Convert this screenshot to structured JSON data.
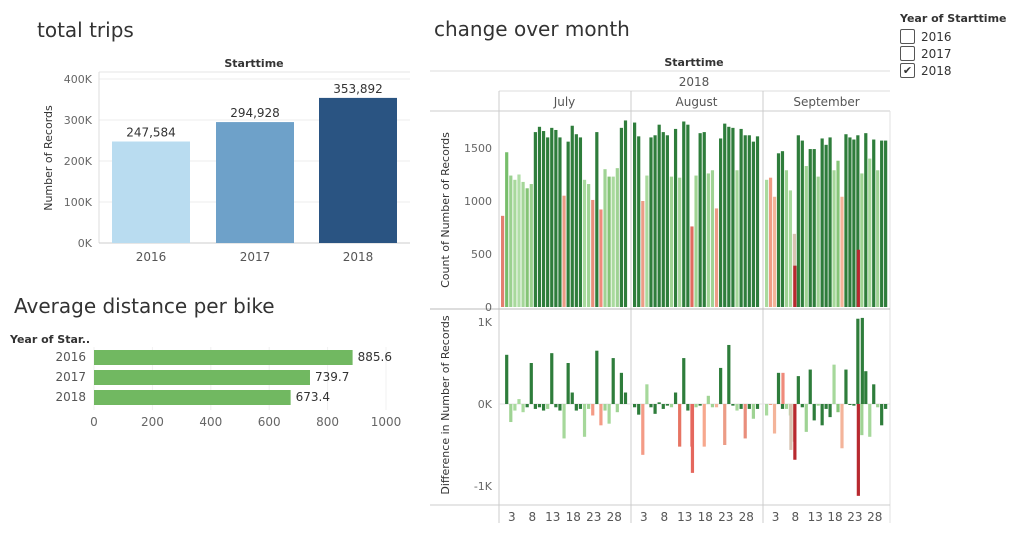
{
  "titles": {
    "total_trips": "total trips",
    "avg_distance": "Average distance per bike",
    "change_month": "change over month"
  },
  "legend": {
    "title": "Year of Starttime",
    "items": [
      {
        "label": "2016",
        "checked": false
      },
      {
        "label": "2017",
        "checked": false
      },
      {
        "label": "2018",
        "checked": true
      }
    ]
  },
  "chart_data": [
    {
      "type": "bar",
      "title": "total trips",
      "header": "Starttime",
      "categories": [
        "2016",
        "2017",
        "2018"
      ],
      "values": [
        247584,
        294928,
        353892
      ],
      "value_labels": [
        "247,584",
        "294,928",
        "353,892"
      ],
      "colors": [
        "#b9dcf0",
        "#6ea1c9",
        "#2a5482"
      ],
      "ylabel": "Number of Records",
      "yticks": [
        "0K",
        "100K",
        "200K",
        "300K",
        "400K"
      ],
      "ylim": [
        0,
        400000
      ]
    },
    {
      "type": "bar",
      "orientation": "horizontal",
      "title": "Average distance per bike",
      "row_header": "Year of Star..",
      "categories": [
        "2016",
        "2017",
        "2018"
      ],
      "values": [
        885.6,
        739.7,
        673.4
      ],
      "value_labels": [
        "885.6",
        "739.7",
        "673.4"
      ],
      "color": "#71b861",
      "xticks": [
        "0",
        "200",
        "400",
        "600",
        "800",
        "1000"
      ],
      "xlim": [
        0,
        1000
      ]
    },
    {
      "type": "bar",
      "title": "change over month",
      "header": "Starttime",
      "year": "2018",
      "months": [
        "July",
        "August",
        "September"
      ],
      "ylabel": "Count of Number of Records",
      "yticks": [
        "0",
        "500",
        "1000",
        "1500"
      ],
      "ylim": [
        0,
        1800
      ],
      "xticks": [
        "3",
        "8",
        "13",
        "18",
        "23",
        "28"
      ],
      "values": [
        [
          860,
          1460,
          1240,
          1200,
          1250,
          1180,
          1120,
          1160,
          1650,
          1700,
          1660,
          1600,
          1690,
          1670,
          1600,
          1050,
          1560,
          1710,
          1630,
          1600,
          1200,
          1160,
          1010,
          1650,
          920,
          1300,
          1230,
          1230,
          1310,
          1690,
          1760
        ],
        [
          1740,
          1610,
          1000,
          1240,
          1600,
          1620,
          1720,
          1650,
          1620,
          1230,
          1680,
          1220,
          1750,
          1720,
          760,
          1240,
          1640,
          1650,
          1260,
          1290,
          930,
          1590,
          1730,
          1700,
          1690,
          1290,
          1680,
          1620,
          1620,
          1560,
          1610
        ],
        [
          1200,
          1220,
          1040,
          1450,
          1470,
          1290,
          1100,
          690,
          1620,
          1570,
          1330,
          1490,
          1490,
          1230,
          1590,
          1530,
          1600,
          1290,
          1380,
          1040,
          1630,
          1600,
          1580,
          1620,
          1260,
          1640,
          1400,
          1580,
          1290,
          1570,
          1570
        ]
      ],
      "colors": [
        [
          "#e37f70",
          "#77be6b",
          "#9bd190",
          "#a8d99c",
          "#b1dea7",
          "#a4d698",
          "#85c476",
          "#9ad08e",
          "#2e7d3b",
          "#2e7d3b",
          "#2e7d3b",
          "#2e7d3b",
          "#2e7d3b",
          "#2e7d3b",
          "#2e7d3b",
          "#ec9c86",
          "#2e7d3b",
          "#2e7d3b",
          "#2e7d3b",
          "#2e7d3b",
          "#a9da9e",
          "#a0d494",
          "#e98e7c",
          "#2e7d3b",
          "#ef8a7b",
          "#9fd394",
          "#86c578",
          "#a9da9e",
          "#9fd394",
          "#2e7d3b",
          "#2e7d3b"
        ],
        [
          "#2e7d3b",
          "#2e7d3b",
          "#ec9c86",
          "#a9da9e",
          "#2e7d3b",
          "#2e7d3b",
          "#2e7d3b",
          "#2e7d3b",
          "#2e7d3b",
          "#a0d494",
          "#2e7d3b",
          "#a6d89b",
          "#2e7d3b",
          "#2e7d3b",
          "#e06b60",
          "#a0d494",
          "#2e7d3b",
          "#2e7d3b",
          "#a0d494",
          "#9fd394",
          "#ec9c86",
          "#2e7d3b",
          "#2e7d3b",
          "#2e7d3b",
          "#2e7d3b",
          "#a6d89b",
          "#2e7d3b",
          "#2e7d3b",
          "#2e7d3b",
          "#2e7d3b",
          "#2e7d3b"
        ],
        [
          "#a9da9e",
          "#ef9d86",
          "#f4b49a",
          "#2e7d3b",
          "#2e7d3b",
          "#9fd394",
          "#a9da9e",
          "#d9c3b2",
          "#2e7d3b",
          "#2e7d3b",
          "#9fd394",
          "#2e7d3b",
          "#2e7d3b",
          "#9fd394",
          "#2e7d3b",
          "#2e7d3b",
          "#2e7d3b",
          "#a6d89b",
          "#86c578",
          "#f4b49a",
          "#2e7d3b",
          "#2e7d3b",
          "#2e7d3b",
          "#2e7d3b",
          "#9fd394",
          "#2e7d3b",
          "#a6d89b",
          "#2e7d3b",
          "#9fd394",
          "#2e7d3b",
          "#2e7d3b"
        ]
      ],
      "low_bars": {
        "July": [],
        "August": [],
        "September": [
          [
            7,
            390,
            "#b8292f"
          ],
          [
            23,
            540,
            "#b8292f"
          ]
        ]
      }
    },
    {
      "type": "bar",
      "title": "Difference in Number of Records",
      "ylabel": "Difference in Number of Records",
      "yticks": [
        "-1K",
        "0K",
        "1K"
      ],
      "ylim": [
        -1100,
        1100
      ],
      "values": [
        [
          null,
          600,
          -220,
          -80,
          60,
          -100,
          -40,
          500,
          -60,
          -40,
          -80,
          -60,
          620,
          -40,
          -80,
          -420,
          500,
          140,
          -80,
          -60,
          -400,
          -60,
          -140,
          650,
          -260,
          -80,
          -240,
          560,
          -100,
          380,
          140
        ],
        [
          -40,
          -130,
          -620,
          240,
          -40,
          -120,
          20,
          -60,
          -20,
          -40,
          140,
          -520,
          560,
          -80,
          -520,
          -40,
          -20,
          -520,
          100,
          -40,
          -40,
          440,
          -500,
          720,
          -20,
          -80,
          -60,
          -420,
          -60,
          -180,
          -60
        ],
        [
          -140,
          0,
          -360,
          380,
          -60,
          -60,
          -140,
          -460,
          340,
          -40,
          -340,
          420,
          -200,
          -20,
          -260,
          -60,
          -160,
          480,
          -100,
          -540,
          420,
          0,
          -20,
          1040,
          -380,
          400,
          -400,
          240,
          -40,
          -260,
          -60
        ]
      ],
      "colors": [
        [
          null,
          "#2e7d3b",
          "#9fd394",
          "#a9da9e",
          "#a9da9e",
          "#a9da9e",
          "#2e7d3b",
          "#2e7d3b",
          "#2e7d3b",
          "#2e7d3b",
          "#2e7d3b",
          "#9fd394",
          "#2e7d3b",
          "#2e7d3b",
          "#2e7d3b",
          "#a6d89b",
          "#2e7d3b",
          "#2e7d3b",
          "#2e7d3b",
          "#2e7d3b",
          "#a6d89b",
          "#a0d494",
          "#f49b86",
          "#2e7d3b",
          "#f49b86",
          "#9fd394",
          "#a6d89b",
          "#2e7d3b",
          "#9fd394",
          "#2e7d3b",
          "#2e7d3b"
        ],
        [
          "#2e7d3b",
          "#2e7d3b",
          "#f49b86",
          "#a6d89b",
          "#2e7d3b",
          "#2e7d3b",
          "#2e7d3b",
          "#2e7d3b",
          "#2e7d3b",
          "#a0d494",
          "#2e7d3b",
          "#e77463",
          "#2e7d3b",
          "#2e7d3b",
          "#e5675d",
          "#a0d494",
          "#2e7d3b",
          "#f7a88e",
          "#a0d494",
          "#9fd394",
          "#f4b49a",
          "#2e7d3b",
          "#ec9c86",
          "#2e7d3b",
          "#2e7d3b",
          "#a6d89b",
          "#2e7d3b",
          "#e98e7c",
          "#2e7d3b",
          "#9fd394",
          "#2e7d3b"
        ],
        [
          "#a9da9e",
          "#ef9d86",
          "#f4b49a",
          "#2e7d3b",
          "#2e7d3b",
          "#9fd394",
          "#a9da9e",
          "#d9c3b2",
          "#2e7d3b",
          "#2e7d3b",
          "#9fd394",
          "#2e7d3b",
          "#2e7d3b",
          "#9fd394",
          "#2e7d3b",
          "#2e7d3b",
          "#2e7d3b",
          "#a6d89b",
          "#86c578",
          "#f4b49a",
          "#2e7d3b",
          "#2e7d3b",
          "#2e7d3b",
          "#2e7d3b",
          "#9fd394",
          "#2e7d3b",
          "#a6d89b",
          "#2e7d3b",
          "#9fd394",
          "#2e7d3b",
          "#2e7d3b"
        ]
      ],
      "special": {
        "August": [
          [
            14,
            -840,
            "#e5675d"
          ]
        ],
        "September": [
          [
            6,
            -560,
            "#d9c3b2"
          ],
          [
            7,
            -680,
            "#b8292f"
          ],
          [
            4,
            380,
            "#ef8a7b"
          ],
          [
            23,
            -1120,
            "#b8292f"
          ],
          [
            24,
            1050,
            "#2e7d3b"
          ]
        ]
      }
    }
  ]
}
